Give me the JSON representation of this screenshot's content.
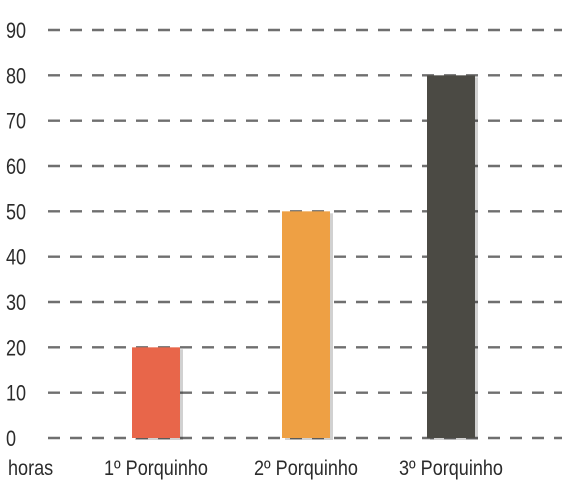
{
  "chart_data": {
    "type": "bar",
    "title": "",
    "xlabel": "",
    "ylabel": "horas",
    "categories": [
      "1º Porquinho",
      "2º Porquinho",
      "3º Porquinho"
    ],
    "values": [
      20,
      50,
      80
    ],
    "bar_colors": [
      "#e8664a",
      "#eea044",
      "#4b4a44"
    ],
    "ylim": [
      0,
      90
    ],
    "yticks": [
      0,
      10,
      20,
      30,
      40,
      50,
      60,
      70,
      80,
      90
    ],
    "grid": true,
    "legend": "none"
  }
}
